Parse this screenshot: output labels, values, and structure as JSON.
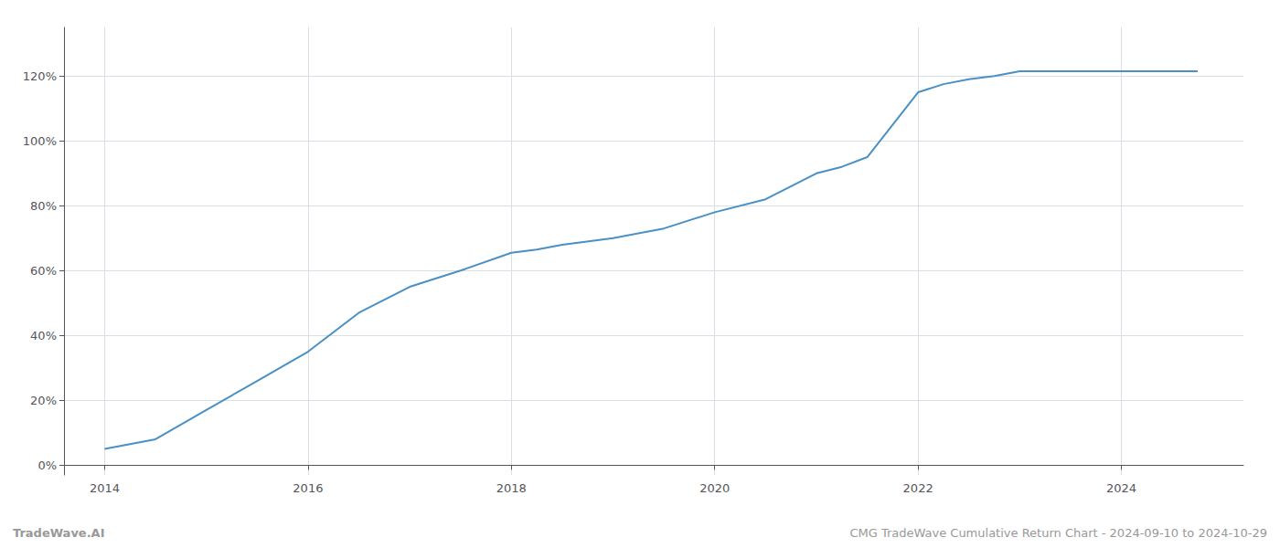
{
  "chart_data": {
    "type": "line",
    "title": "CMG TradeWave Cumulative Return Chart - 2024-09-10 to 2024-10-29",
    "annotations": [
      "TradeWave.AI"
    ],
    "color": "#4a90c4",
    "grid": true,
    "x": [
      2014.0,
      2014.5,
      2015.0,
      2015.5,
      2016.0,
      2016.5,
      2017.0,
      2017.5,
      2018.0,
      2018.25,
      2018.5,
      2019.0,
      2019.5,
      2020.0,
      2020.5,
      2021.0,
      2021.25,
      2021.5,
      2022.0,
      2022.25,
      2022.5,
      2022.75,
      2023.0,
      2023.5,
      2024.0,
      2024.75
    ],
    "values": [
      5.0,
      8.0,
      17.0,
      26.0,
      35.0,
      47.0,
      55.0,
      60.0,
      65.5,
      66.5,
      68.0,
      70.0,
      73.0,
      78.0,
      82.0,
      90.0,
      92.0,
      95.0,
      115.0,
      117.5,
      119.0,
      120.0,
      121.5,
      121.5,
      121.5,
      121.5
    ],
    "xlim": [
      2013.6,
      2025.2
    ],
    "xticks": [
      2014,
      2016,
      2018,
      2020,
      2022,
      2024
    ],
    "ylim": [
      -3,
      135
    ],
    "yticks": [
      {
        "value": 0,
        "label": "0%"
      },
      {
        "value": 20,
        "label": "20%"
      },
      {
        "value": 40,
        "label": "40%"
      },
      {
        "value": 60,
        "label": "60%"
      },
      {
        "value": 80,
        "label": "80%"
      },
      {
        "value": 100,
        "label": "100%"
      },
      {
        "value": 120,
        "label": "120%"
      }
    ]
  }
}
